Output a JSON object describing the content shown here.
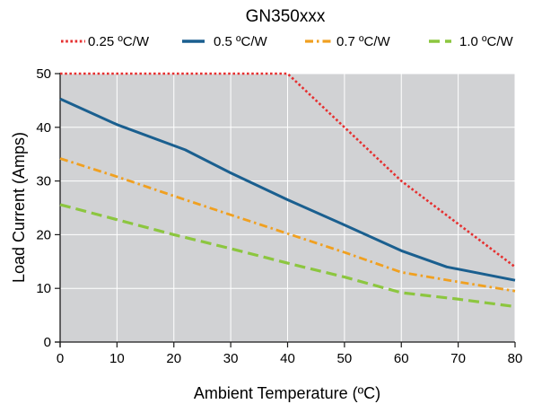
{
  "chart_data": {
    "type": "line",
    "title": "GN350xxx",
    "xlabel": "Ambient Temperature (ºC)",
    "ylabel": "Load Current (Amps)",
    "xlim": [
      0,
      80
    ],
    "ylim": [
      0,
      50
    ],
    "x_ticks": [
      "0",
      "10",
      "20",
      "30",
      "40",
      "50",
      "60",
      "70",
      "80"
    ],
    "y_ticks": [
      "0",
      "10",
      "20",
      "30",
      "40",
      "50"
    ],
    "grid": true,
    "legend_position": "top",
    "series": [
      {
        "name": "0.25 ºC/W",
        "color": "#e53030",
        "style": "dotted",
        "x": [
          0,
          40,
          50,
          60,
          70,
          80
        ],
        "y": [
          50,
          50,
          40,
          30,
          22,
          14
        ]
      },
      {
        "name": "0.5 ºC/W",
        "color": "#1a5f8f",
        "style": "solid",
        "x": [
          0,
          10,
          22,
          30,
          40,
          50,
          60,
          68,
          80
        ],
        "y": [
          45.3,
          40.5,
          35.8,
          31.5,
          26.5,
          21.8,
          17,
          14,
          11.5
        ]
      },
      {
        "name": "0.7 ºC/W",
        "color": "#f0a020",
        "style": "dashdot",
        "x": [
          0,
          10,
          20,
          30,
          40,
          50,
          60,
          70,
          80
        ],
        "y": [
          34.2,
          30.8,
          27.2,
          23.7,
          20.2,
          16.7,
          13,
          11.2,
          9.5
        ]
      },
      {
        "name": "1.0 ºC/W",
        "color": "#8cc63f",
        "style": "dashed",
        "x": [
          0,
          10,
          20,
          30,
          40,
          50,
          60,
          70,
          80
        ],
        "y": [
          25.6,
          22.8,
          20,
          17.4,
          14.7,
          12.1,
          9.2,
          8,
          6.6
        ]
      }
    ]
  }
}
